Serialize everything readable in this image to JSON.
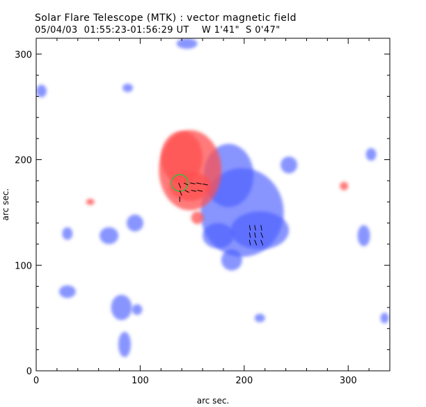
{
  "title": "Solar Flare Telescope (MTK) : vector magnetic field",
  "subtitle": "05/04/03  01:55:23-01:56:29 UT    W 1'41\"  S 0'47\"",
  "chart_data": {
    "type": "heatmap",
    "title": "Solar Flare Telescope (MTK) : vector magnetic field",
    "xlabel": "arc sec.",
    "ylabel": "arc sec.",
    "xlim": [
      0,
      340
    ],
    "ylim": [
      0,
      315
    ],
    "x_ticks": [
      0,
      100,
      200,
      300
    ],
    "y_ticks": [
      0,
      100,
      200,
      300
    ],
    "colors": {
      "positive": "#ff5050",
      "negative": "#4a5cff",
      "circle": "#3dbb3d",
      "vector": "#000000"
    },
    "positive_regions": [
      {
        "x": 148,
        "y": 190,
        "rx": 30,
        "ry": 38
      },
      {
        "x": 140,
        "y": 202,
        "rx": 20,
        "ry": 25
      },
      {
        "x": 148,
        "y": 175,
        "rx": 20,
        "ry": 14
      },
      {
        "x": 155,
        "y": 145,
        "rx": 6,
        "ry": 6
      },
      {
        "x": 52,
        "y": 160,
        "rx": 4,
        "ry": 3
      },
      {
        "x": 296,
        "y": 175,
        "rx": 4,
        "ry": 4
      }
    ],
    "negative_regions": [
      {
        "x": 198,
        "y": 150,
        "rx": 40,
        "ry": 42
      },
      {
        "x": 185,
        "y": 185,
        "rx": 24,
        "ry": 30
      },
      {
        "x": 215,
        "y": 133,
        "rx": 28,
        "ry": 18
      },
      {
        "x": 175,
        "y": 128,
        "rx": 15,
        "ry": 12
      },
      {
        "x": 188,
        "y": 105,
        "rx": 10,
        "ry": 10
      },
      {
        "x": 243,
        "y": 195,
        "rx": 8,
        "ry": 8
      },
      {
        "x": 95,
        "y": 140,
        "rx": 8,
        "ry": 8
      },
      {
        "x": 70,
        "y": 128,
        "rx": 9,
        "ry": 8
      },
      {
        "x": 82,
        "y": 60,
        "rx": 10,
        "ry": 12
      },
      {
        "x": 97,
        "y": 58,
        "rx": 5,
        "ry": 5
      },
      {
        "x": 85,
        "y": 25,
        "rx": 6,
        "ry": 12
      },
      {
        "x": 30,
        "y": 75,
        "rx": 8,
        "ry": 6
      },
      {
        "x": 88,
        "y": 268,
        "rx": 5,
        "ry": 4
      },
      {
        "x": 5,
        "y": 265,
        "rx": 5,
        "ry": 6
      },
      {
        "x": 315,
        "y": 128,
        "rx": 6,
        "ry": 10
      },
      {
        "x": 322,
        "y": 205,
        "rx": 5,
        "ry": 6
      },
      {
        "x": 145,
        "y": 310,
        "rx": 10,
        "ry": 5
      },
      {
        "x": 215,
        "y": 50,
        "rx": 5,
        "ry": 4
      },
      {
        "x": 30,
        "y": 130,
        "rx": 5,
        "ry": 6
      },
      {
        "x": 335,
        "y": 50,
        "rx": 4,
        "ry": 5
      }
    ],
    "circle": {
      "x": 138,
      "y": 178,
      "r": 8
    },
    "vectors": [
      {
        "x": 137,
        "y": 178,
        "dx": 2,
        "dy": -5
      },
      {
        "x": 142,
        "y": 178,
        "dx": 4,
        "dy": -2
      },
      {
        "x": 148,
        "y": 178,
        "dx": 5,
        "dy": -1
      },
      {
        "x": 154,
        "y": 178,
        "dx": 5,
        "dy": -1
      },
      {
        "x": 160,
        "y": 177,
        "dx": 5,
        "dy": -1
      },
      {
        "x": 138,
        "y": 171,
        "dx": 2,
        "dy": -5
      },
      {
        "x": 143,
        "y": 171,
        "dx": 4,
        "dy": -2
      },
      {
        "x": 149,
        "y": 171,
        "dx": 5,
        "dy": -1
      },
      {
        "x": 155,
        "y": 171,
        "dx": 5,
        "dy": -1
      },
      {
        "x": 138,
        "y": 165,
        "dx": 0,
        "dy": -5
      },
      {
        "x": 205,
        "y": 138,
        "dx": 1,
        "dy": -5
      },
      {
        "x": 210,
        "y": 138,
        "dx": 1,
        "dy": -5
      },
      {
        "x": 216,
        "y": 138,
        "dx": 1,
        "dy": -5
      },
      {
        "x": 205,
        "y": 131,
        "dx": 1,
        "dy": -5
      },
      {
        "x": 210,
        "y": 131,
        "dx": 1,
        "dy": -5
      },
      {
        "x": 216,
        "y": 131,
        "dx": 2,
        "dy": -5
      },
      {
        "x": 205,
        "y": 124,
        "dx": 1,
        "dy": -5
      },
      {
        "x": 210,
        "y": 124,
        "dx": 2,
        "dy": -5
      },
      {
        "x": 216,
        "y": 124,
        "dx": 2,
        "dy": -5
      }
    ]
  }
}
